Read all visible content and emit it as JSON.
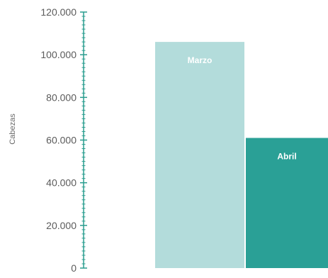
{
  "chart_data": {
    "type": "bar",
    "title": "",
    "xlabel": "",
    "ylabel": "Cabezas",
    "ylim": [
      0,
      120000
    ],
    "yticks": [
      0,
      20000,
      40000,
      60000,
      80000,
      100000,
      120000
    ],
    "ytick_labels": [
      "0",
      "20.000",
      "40.000",
      "60.000",
      "80.000",
      "100.000",
      "120.000"
    ],
    "minor_ticks_per_major": 10,
    "grid": false,
    "categories": [
      "Marzo",
      "Abril"
    ],
    "values": [
      106000,
      61000
    ],
    "colors": [
      "#b3dcdb",
      "#2aa096"
    ],
    "axis_color": "#2a9d8f",
    "data_labels_inside": true
  }
}
